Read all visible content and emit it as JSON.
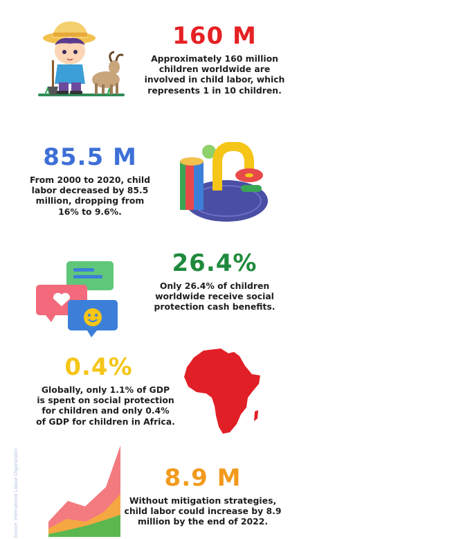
{
  "stats": [
    {
      "figure": "160 M",
      "color": "#e52124",
      "description": "Approximately 160 million\nchildren worldwide are\ninvolved in child labor, which\nrepresents 1 in 10 children.",
      "illustration": "child-with-goat-icon"
    },
    {
      "figure": "85.5 M",
      "color": "#3d6fd6",
      "description": "From 2000 to 2020, child\nlabor decreased by 85.5\nmillion, dropping from\n16% to 9.6%.",
      "illustration": "abstract-3d-shapes-icon"
    },
    {
      "figure": "26.4%",
      "color": "#1f8a3c",
      "description": "Only 26.4% of children\nworldwide receive social\nprotection cash benefits.",
      "illustration": "chat-bubbles-icon"
    },
    {
      "figure": "0.4%",
      "color": "#f5c518",
      "description": "Globally, only 1.1% of GDP\nis spent on social protection\nfor children and only 0.4%\nof GDP for children in Africa.",
      "illustration": "africa-map-icon"
    },
    {
      "figure": "8.9 M",
      "color": "#f29a1d",
      "description": "Without mitigation strategies,\nchild labor could increase by 8.9\nmillion by the end of 2022.",
      "illustration": "area-chart-icon"
    }
  ],
  "source": "Source: International Labour Organization"
}
